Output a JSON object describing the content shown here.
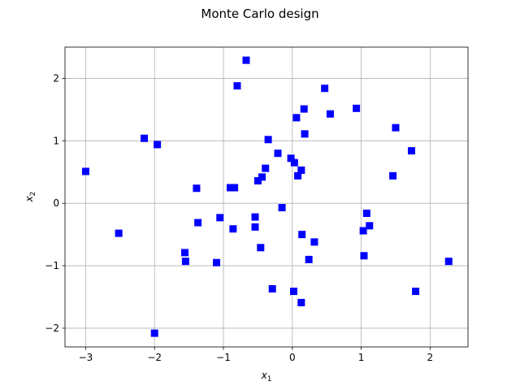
{
  "title": "Monte Carlo design",
  "chart_data": {
    "type": "scatter",
    "title": "Monte Carlo design",
    "xlabel": {
      "base": "x",
      "sub": "1"
    },
    "ylabel": {
      "base": "x",
      "sub": "2"
    },
    "xlim": [
      -3.3,
      2.55
    ],
    "ylim": [
      -2.3,
      2.5
    ],
    "xticks": [
      -3,
      -2,
      -1,
      0,
      1,
      2
    ],
    "yticks": [
      -2,
      -1,
      0,
      1,
      2
    ],
    "xtick_labels": [
      "−3",
      "−2",
      "−1",
      "0",
      "1",
      "2"
    ],
    "ytick_labels": [
      "−2",
      "−1",
      "0",
      "1",
      "2"
    ],
    "grid": true,
    "marker": "square",
    "marker_color": "#0000ff",
    "points": [
      {
        "x": -3.0,
        "y": 0.51
      },
      {
        "x": -2.52,
        "y": -0.48
      },
      {
        "x": -2.15,
        "y": 1.04
      },
      {
        "x": -1.96,
        "y": 0.94
      },
      {
        "x": -2.0,
        "y": -2.08
      },
      {
        "x": -1.39,
        "y": 0.24
      },
      {
        "x": -1.37,
        "y": -0.31
      },
      {
        "x": -1.56,
        "y": -0.79
      },
      {
        "x": -1.55,
        "y": -0.93
      },
      {
        "x": -1.1,
        "y": -0.95
      },
      {
        "x": -1.05,
        "y": -0.23
      },
      {
        "x": -0.9,
        "y": 0.25
      },
      {
        "x": -0.84,
        "y": 0.25
      },
      {
        "x": -0.86,
        "y": -0.41
      },
      {
        "x": -0.8,
        "y": 1.88
      },
      {
        "x": -0.67,
        "y": 2.29
      },
      {
        "x": -0.54,
        "y": -0.22
      },
      {
        "x": -0.54,
        "y": -0.38
      },
      {
        "x": -0.5,
        "y": 0.36
      },
      {
        "x": -0.44,
        "y": 0.42
      },
      {
        "x": -0.39,
        "y": 0.56
      },
      {
        "x": -0.35,
        "y": 1.02
      },
      {
        "x": -0.46,
        "y": -0.71
      },
      {
        "x": -0.29,
        "y": -1.37
      },
      {
        "x": -0.21,
        "y": 0.8
      },
      {
        "x": -0.15,
        "y": -0.07
      },
      {
        "x": -0.02,
        "y": 0.72
      },
      {
        "x": 0.03,
        "y": 0.65
      },
      {
        "x": 0.06,
        "y": 1.37
      },
      {
        "x": 0.08,
        "y": 0.44
      },
      {
        "x": 0.13,
        "y": 0.53
      },
      {
        "x": 0.17,
        "y": 1.51
      },
      {
        "x": 0.18,
        "y": 1.11
      },
      {
        "x": 0.14,
        "y": -0.5
      },
      {
        "x": 0.02,
        "y": -1.41
      },
      {
        "x": 0.13,
        "y": -1.59
      },
      {
        "x": 0.24,
        "y": -0.9
      },
      {
        "x": 0.32,
        "y": -0.62
      },
      {
        "x": 0.47,
        "y": 1.84
      },
      {
        "x": 0.55,
        "y": 1.43
      },
      {
        "x": 0.93,
        "y": 1.52
      },
      {
        "x": 1.03,
        "y": -0.44
      },
      {
        "x": 1.04,
        "y": -0.84
      },
      {
        "x": 1.08,
        "y": -0.16
      },
      {
        "x": 1.12,
        "y": -0.36
      },
      {
        "x": 1.46,
        "y": 0.44
      },
      {
        "x": 1.5,
        "y": 1.21
      },
      {
        "x": 1.73,
        "y": 0.84
      },
      {
        "x": 1.79,
        "y": -1.41
      },
      {
        "x": 2.27,
        "y": -0.93
      }
    ]
  }
}
